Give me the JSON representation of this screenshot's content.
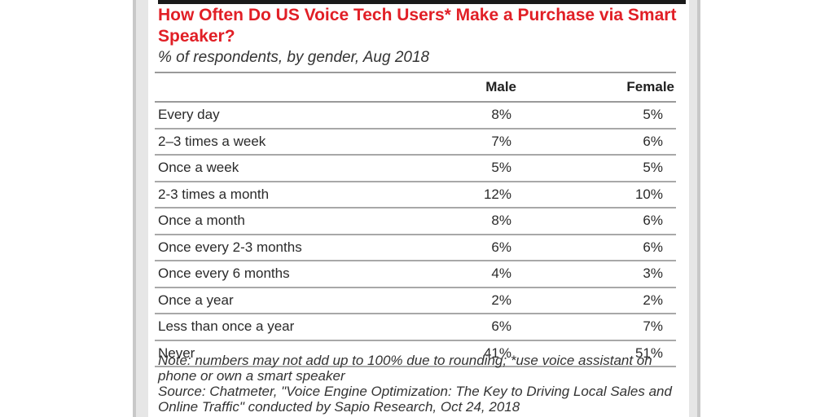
{
  "chart_data": {
    "type": "table",
    "title": "How Often Do US Voice Tech Users* Make a Purchase via Smart Speaker?",
    "subtitle": "% of respondents, by gender, Aug 2018",
    "columns": [
      "",
      "Male",
      "Female"
    ],
    "rows": [
      {
        "label": "Every day",
        "male": "8%",
        "female": "5%"
      },
      {
        "label": "2–3 times a week",
        "male": "7%",
        "female": "6%"
      },
      {
        "label": "Once a week",
        "male": "5%",
        "female": "5%"
      },
      {
        "label": "2-3 times a month",
        "male": "12%",
        "female": "10%"
      },
      {
        "label": "Once a month",
        "male": "8%",
        "female": "6%"
      },
      {
        "label": "Once every 2-3 months",
        "male": "6%",
        "female": "6%"
      },
      {
        "label": "Once every 6 months",
        "male": "4%",
        "female": "3%"
      },
      {
        "label": "Once a year",
        "male": "2%",
        "female": "2%"
      },
      {
        "label": "Less than once a year",
        "male": "6%",
        "female": "7%"
      },
      {
        "label": "Never",
        "male": "41%",
        "female": "51%"
      }
    ],
    "series": [
      {
        "name": "Male",
        "values": [
          8,
          7,
          5,
          12,
          8,
          6,
          4,
          2,
          6,
          41
        ]
      },
      {
        "name": "Female",
        "values": [
          5,
          6,
          5,
          10,
          6,
          6,
          3,
          2,
          7,
          51
        ]
      }
    ],
    "note": "Note: numbers may not add up to 100% due to rounding; *use voice assistant on phone or own a smart speaker",
    "source": "Source: Chatmeter, \"Voice Engine Optimization: The Key to Driving Local Sales and Online Traffic\" conducted by Sapio Research, Oct 24, 2018"
  },
  "colors": {
    "title": "#e11f26",
    "text": "#2a2a2a",
    "frame": "#e6e6e6",
    "top_bar": "#1a1a1a"
  }
}
